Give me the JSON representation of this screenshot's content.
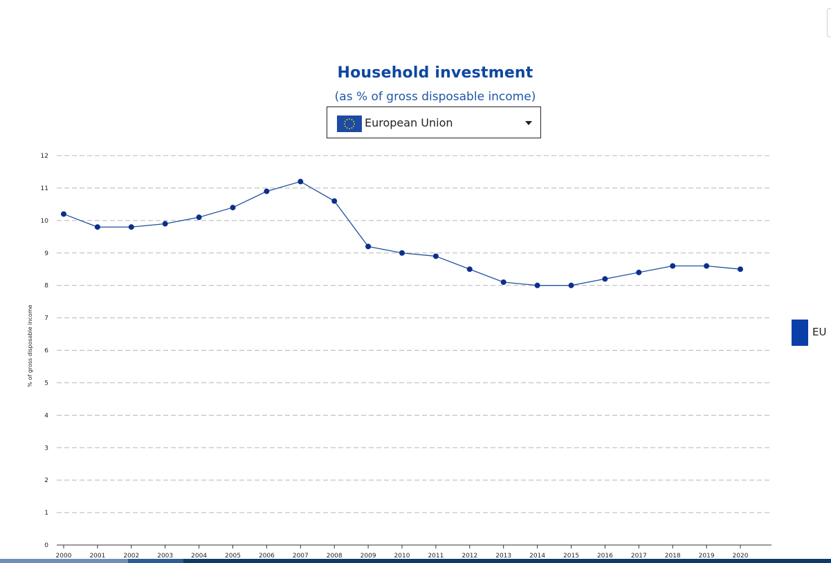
{
  "chart_data": {
    "type": "line",
    "title": "Household investment",
    "subtitle": "(as % of gross disposable income)",
    "ylabel": "% of gross disposable income",
    "xlabel": "",
    "ylim": [
      0,
      12
    ],
    "yticks": [
      "0",
      "1",
      "2",
      "3",
      "4",
      "5",
      "6",
      "7",
      "8",
      "9",
      "10",
      "11",
      "12"
    ],
    "grid": true,
    "legend_position": "right",
    "categories": [
      "2000",
      "2001",
      "2002",
      "2003",
      "2004",
      "2005",
      "2006",
      "2007",
      "2008",
      "2009",
      "2010",
      "2011",
      "2012",
      "2013",
      "2014",
      "2015",
      "2016",
      "2017",
      "2018",
      "2019",
      "2020"
    ],
    "series": [
      {
        "name": "EU",
        "color": "#0b3ea8",
        "values": [
          10.2,
          9.8,
          9.8,
          9.9,
          10.1,
          10.4,
          10.9,
          11.2,
          10.6,
          9.2,
          9.0,
          8.9,
          8.5,
          8.1,
          8.0,
          8.0,
          8.2,
          8.4,
          8.6,
          8.6,
          8.5
        ]
      }
    ]
  },
  "selector": {
    "selected": "European Union",
    "icon": "eu-flag-icon"
  },
  "legend": {
    "label": "EU",
    "color": "#0b3ea8"
  },
  "colors": {
    "title": "#0e47a1",
    "line": "#1f4f9e",
    "marker": "#0b2f8a",
    "grid": "#b5b5b5"
  }
}
